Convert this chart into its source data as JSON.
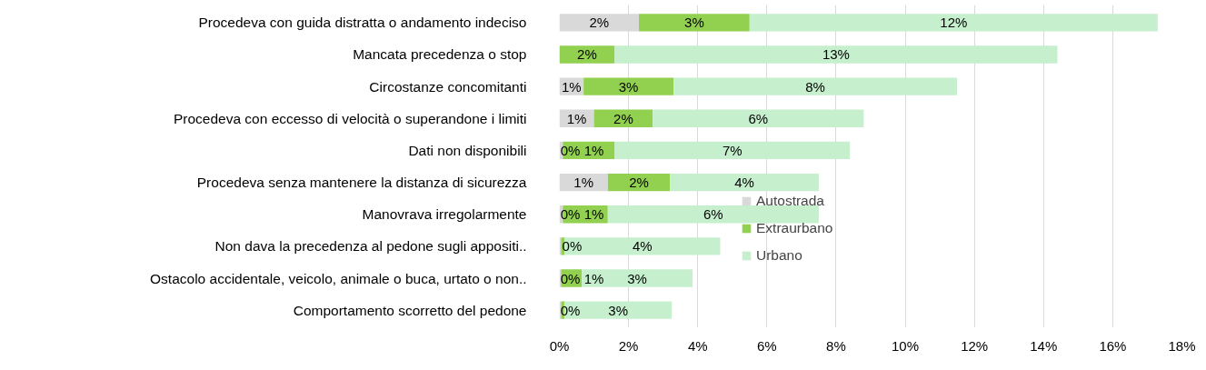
{
  "chart_data": {
    "type": "bar",
    "orientation": "horizontal",
    "stacked": true,
    "categories": [
      "Procedeva con guida distratta o andamento indeciso",
      "Mancata precedenza o stop",
      "Circostanze concomitanti",
      "Procedeva con eccesso di velocità o superandone i limiti",
      "Dati non disponibili",
      "Procedeva senza mantenere la distanza di sicurezza",
      "Manovrava irregolarmente",
      "Non dava la precedenza al pedone sugli appositi..",
      "Ostacolo accidentale, veicolo, animale o buca, urtato o non..",
      "Comportamento scorretto del pedone"
    ],
    "series": [
      {
        "name": "Autostrada",
        "color": "#d9d9d9",
        "values": [
          2.3,
          0,
          0.7,
          1.0,
          0.1,
          1.4,
          0.1,
          0.05,
          0.05,
          0.05
        ],
        "value_labels": [
          "2%",
          null,
          "1%",
          "1%",
          "0%",
          "1%",
          "0%",
          null,
          "0%",
          "0%"
        ]
      },
      {
        "name": "Extraurbano",
        "color": "#92d050",
        "values": [
          3.2,
          1.6,
          2.6,
          1.7,
          1.5,
          1.8,
          1.3,
          0.1,
          0.6,
          0.1
        ],
        "value_labels": [
          "3%",
          "2%",
          "3%",
          "2%",
          "1%",
          "2%",
          "1%",
          "0%",
          "1%",
          null
        ]
      },
      {
        "name": "Urbano",
        "color": "#c6efce",
        "values": [
          11.8,
          12.8,
          8.2,
          6.1,
          6.8,
          4.3,
          6.1,
          4.5,
          3.2,
          3.1
        ],
        "value_labels": [
          "12%",
          "13%",
          "8%",
          "6%",
          "7%",
          "4%",
          "6%",
          "4%",
          "3%",
          "3%"
        ]
      }
    ],
    "xlim": [
      0,
      18
    ],
    "xticks": [
      {
        "value": 0,
        "label": "0%"
      },
      {
        "value": 2,
        "label": "2%"
      },
      {
        "value": 4,
        "label": "4%"
      },
      {
        "value": 6,
        "label": "6%"
      },
      {
        "value": 8,
        "label": "8%"
      },
      {
        "value": 10,
        "label": "10%"
      },
      {
        "value": 12,
        "label": "12%"
      },
      {
        "value": 14,
        "label": "14%"
      },
      {
        "value": 16,
        "label": "16%"
      },
      {
        "value": 18,
        "label": "18%"
      }
    ],
    "grid": "x",
    "legend": "center"
  }
}
